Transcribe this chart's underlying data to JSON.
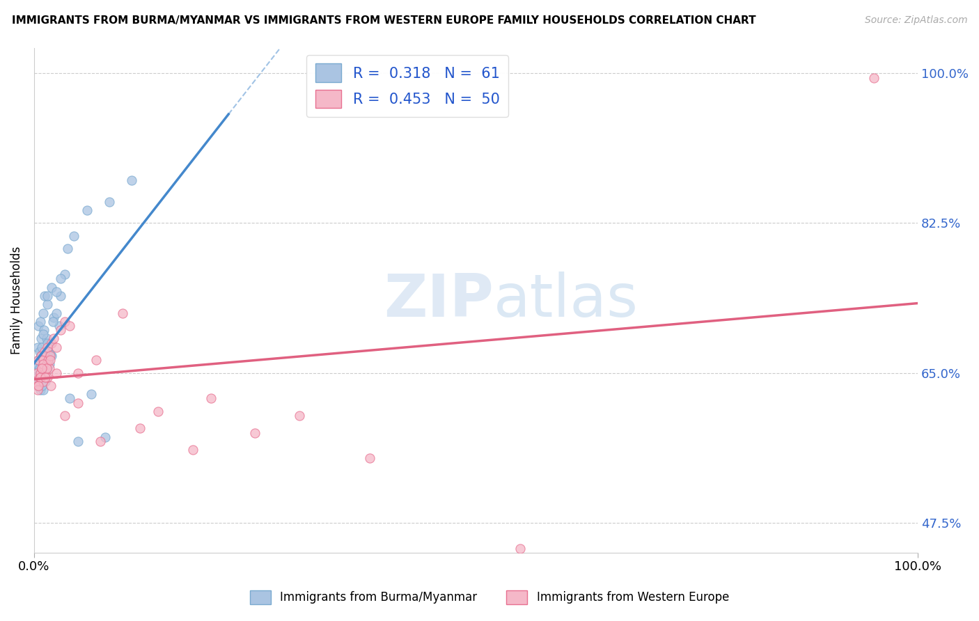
{
  "title": "IMMIGRANTS FROM BURMA/MYANMAR VS IMMIGRANTS FROM WESTERN EUROPE FAMILY HOUSEHOLDS CORRELATION CHART",
  "source": "Source: ZipAtlas.com",
  "ylabel": "Family Households",
  "xlim": [
    0,
    100
  ],
  "ylim": [
    44,
    103
  ],
  "x_tick_labels": [
    "0.0%",
    "100.0%"
  ],
  "y_ticks": [
    47.5,
    65.0,
    82.5,
    100.0
  ],
  "y_tick_labels": [
    "47.5%",
    "65.0%",
    "82.5%",
    "100.0%"
  ],
  "blue_scatter_color": "#aac4e2",
  "blue_edge_color": "#7aaad0",
  "pink_scatter_color": "#f5b8c8",
  "pink_edge_color": "#e87090",
  "blue_line_color": "#4488cc",
  "pink_line_color": "#e06080",
  "r_blue": 0.318,
  "n_blue": 61,
  "r_pink": 0.453,
  "n_pink": 50,
  "watermark_zip": "ZIP",
  "watermark_atlas": "atlas",
  "blue_x": [
    0.2,
    0.3,
    0.4,
    0.4,
    0.5,
    0.5,
    0.6,
    0.6,
    0.7,
    0.7,
    0.8,
    0.8,
    0.9,
    0.9,
    1.0,
    1.0,
    1.0,
    1.1,
    1.1,
    1.2,
    1.2,
    1.3,
    1.3,
    1.4,
    1.5,
    1.5,
    1.6,
    1.7,
    1.8,
    2.0,
    2.0,
    2.2,
    2.5,
    2.8,
    3.0,
    3.5,
    4.0,
    5.0,
    6.5,
    8.0,
    0.3,
    0.5,
    0.7,
    0.9,
    1.1,
    1.3,
    1.5,
    1.8,
    2.1,
    2.5,
    3.0,
    3.8,
    4.5,
    6.0,
    8.5,
    11.0,
    0.4,
    0.6,
    0.8,
    1.0,
    1.5
  ],
  "blue_y": [
    65.5,
    66.0,
    63.5,
    68.0,
    64.0,
    70.5,
    65.0,
    67.5,
    63.0,
    71.0,
    66.5,
    69.0,
    64.5,
    68.0,
    65.0,
    63.0,
    72.0,
    66.0,
    70.0,
    65.5,
    74.0,
    64.0,
    67.0,
    69.0,
    65.5,
    73.0,
    67.5,
    66.0,
    68.5,
    67.0,
    75.0,
    71.5,
    72.0,
    70.5,
    74.0,
    76.5,
    62.0,
    57.0,
    62.5,
    57.5,
    64.5,
    66.5,
    65.0,
    63.5,
    65.8,
    64.8,
    68.5,
    67.2,
    71.0,
    74.5,
    76.0,
    79.5,
    81.0,
    84.0,
    85.0,
    87.5,
    63.5,
    65.5,
    67.0,
    69.5,
    74.0
  ],
  "pink_x": [
    0.2,
    0.3,
    0.4,
    0.5,
    0.6,
    0.7,
    0.8,
    0.9,
    1.0,
    1.0,
    1.1,
    1.2,
    1.3,
    1.4,
    1.5,
    1.5,
    1.6,
    1.7,
    1.8,
    2.0,
    2.2,
    2.5,
    3.0,
    3.5,
    4.0,
    5.0,
    7.0,
    10.0,
    14.0,
    20.0,
    30.0,
    55.0,
    95.0,
    0.4,
    0.7,
    1.0,
    1.4,
    1.9,
    2.5,
    3.5,
    5.0,
    7.5,
    12.0,
    18.0,
    25.0,
    38.0,
    0.5,
    0.9,
    1.3,
    1.8
  ],
  "pink_y": [
    64.0,
    65.0,
    63.5,
    66.5,
    64.5,
    65.0,
    67.0,
    65.5,
    64.0,
    66.5,
    65.5,
    67.5,
    65.0,
    66.0,
    64.5,
    68.0,
    66.5,
    65.5,
    67.0,
    68.5,
    69.0,
    68.0,
    70.0,
    71.0,
    70.5,
    65.0,
    66.5,
    72.0,
    60.5,
    62.0,
    60.0,
    44.5,
    99.5,
    63.0,
    64.5,
    66.0,
    65.5,
    63.5,
    65.0,
    60.0,
    61.5,
    57.0,
    58.5,
    56.0,
    58.0,
    55.0,
    63.5,
    65.5,
    64.5,
    66.5
  ]
}
